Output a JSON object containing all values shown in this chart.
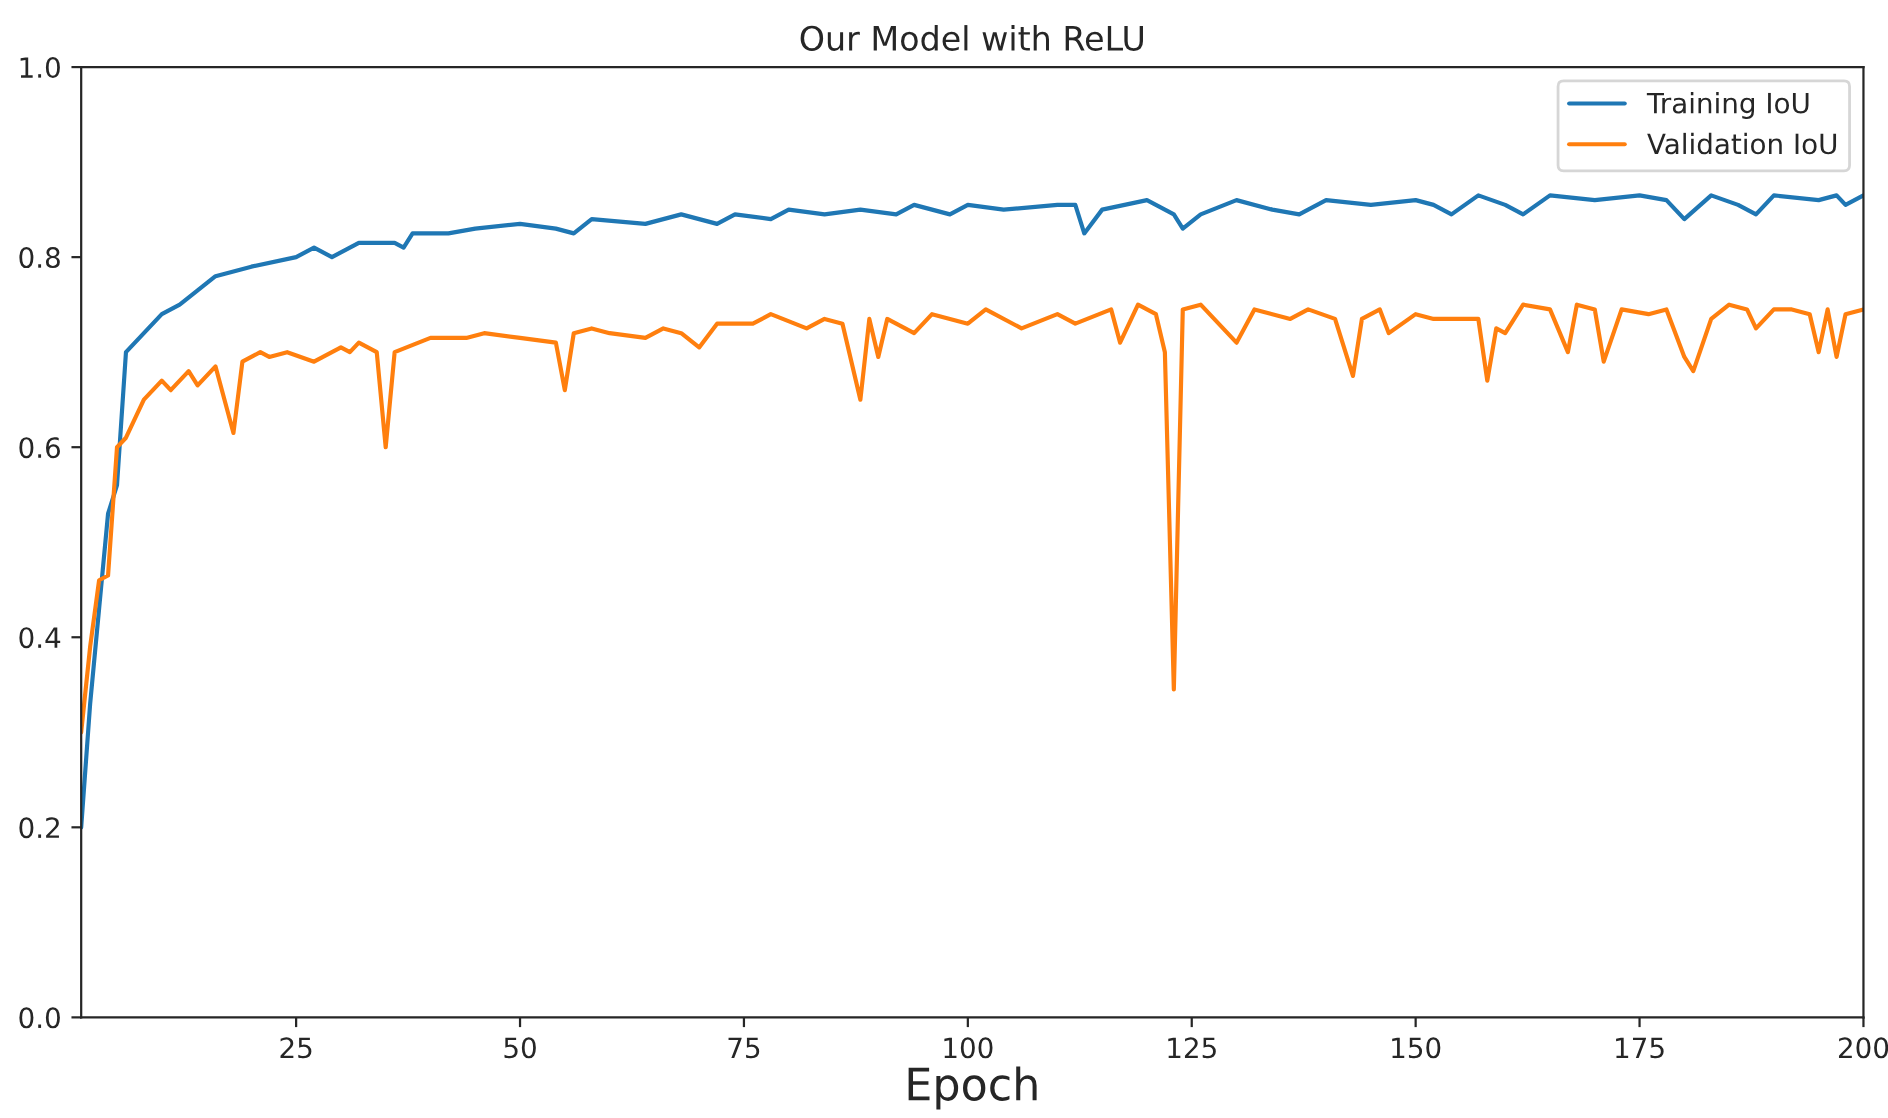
{
  "chart_data": {
    "type": "line",
    "title": "Our Model with ReLU",
    "xlabel": "Epoch",
    "xlim": [
      1,
      200
    ],
    "xticks": [
      25,
      50,
      75,
      100,
      125,
      150,
      175,
      200
    ],
    "ylim": [
      0,
      1
    ],
    "yticks": [
      {
        "value": 0,
        "label": "0.0"
      },
      {
        "value": 0.2,
        "label": "0.2"
      },
      {
        "value": 0.4,
        "label": "0.4"
      },
      {
        "value": 0.6,
        "label": "0.6"
      },
      {
        "value": 0.8,
        "label": "0.8"
      },
      {
        "value": 1,
        "label": "1.0"
      }
    ],
    "grid": false,
    "legend": "top right",
    "marker": "none",
    "line_style": "solid",
    "series": [
      {
        "name": "Training IoU",
        "color": "#1f77b4",
        "x": [
          1,
          2,
          3,
          4,
          5,
          6,
          8,
          10,
          12,
          14,
          16,
          20,
          25,
          27,
          29,
          32,
          36,
          37,
          38,
          42,
          45,
          50,
          54,
          56,
          58,
          64,
          68,
          72,
          74,
          78,
          80,
          84,
          88,
          92,
          94,
          98,
          100,
          104,
          110,
          112,
          113,
          115,
          120,
          123,
          124,
          126,
          130,
          134,
          137,
          140,
          145,
          150,
          152,
          154,
          157,
          160,
          162,
          165,
          170,
          175,
          178,
          180,
          183,
          186,
          188,
          190,
          195,
          197,
          198,
          200
        ],
        "values": [
          0.2,
          0.33,
          0.43,
          0.53,
          0.56,
          0.7,
          0.72,
          0.74,
          0.75,
          0.765,
          0.78,
          0.79,
          0.8,
          0.81,
          0.8,
          0.815,
          0.815,
          0.81,
          0.825,
          0.825,
          0.83,
          0.835,
          0.83,
          0.825,
          0.84,
          0.835,
          0.845,
          0.835,
          0.845,
          0.84,
          0.85,
          0.845,
          0.85,
          0.845,
          0.855,
          0.845,
          0.855,
          0.85,
          0.855,
          0.855,
          0.825,
          0.85,
          0.86,
          0.845,
          0.83,
          0.845,
          0.86,
          0.85,
          0.845,
          0.86,
          0.855,
          0.86,
          0.855,
          0.845,
          0.865,
          0.855,
          0.845,
          0.865,
          0.86,
          0.865,
          0.86,
          0.84,
          0.865,
          0.855,
          0.845,
          0.865,
          0.86,
          0.865,
          0.855,
          0.865
        ]
      },
      {
        "name": "Validation IoU",
        "color": "#ff7f0e",
        "x": [
          1,
          2,
          3,
          4,
          5,
          6,
          8,
          10,
          11,
          13,
          14,
          16,
          18,
          19,
          21,
          22,
          24,
          27,
          30,
          31,
          32,
          34,
          35,
          36,
          40,
          44,
          46,
          50,
          54,
          55,
          56,
          58,
          60,
          64,
          66,
          68,
          70,
          72,
          76,
          78,
          82,
          84,
          86,
          88,
          89,
          90,
          91,
          94,
          96,
          100,
          102,
          106,
          110,
          112,
          116,
          117,
          119,
          121,
          122,
          123,
          124,
          126,
          130,
          132,
          136,
          138,
          141,
          143,
          144,
          146,
          147,
          150,
          152,
          155,
          157,
          158,
          159,
          160,
          162,
          165,
          167,
          168,
          170,
          171,
          173,
          176,
          178,
          180,
          181,
          183,
          185,
          187,
          188,
          190,
          192,
          194,
          195,
          196,
          197,
          198,
          200
        ],
        "values": [
          0.3,
          0.39,
          0.46,
          0.465,
          0.6,
          0.61,
          0.65,
          0.67,
          0.66,
          0.68,
          0.665,
          0.685,
          0.615,
          0.69,
          0.7,
          0.695,
          0.7,
          0.69,
          0.705,
          0.7,
          0.71,
          0.7,
          0.6,
          0.7,
          0.715,
          0.715,
          0.72,
          0.715,
          0.71,
          0.66,
          0.72,
          0.725,
          0.72,
          0.715,
          0.725,
          0.72,
          0.705,
          0.73,
          0.73,
          0.74,
          0.725,
          0.735,
          0.73,
          0.65,
          0.735,
          0.695,
          0.735,
          0.72,
          0.74,
          0.73,
          0.745,
          0.725,
          0.74,
          0.73,
          0.745,
          0.71,
          0.75,
          0.74,
          0.7,
          0.345,
          0.745,
          0.75,
          0.71,
          0.745,
          0.735,
          0.745,
          0.735,
          0.675,
          0.735,
          0.745,
          0.72,
          0.74,
          0.735,
          0.735,
          0.735,
          0.67,
          0.725,
          0.72,
          0.75,
          0.745,
          0.7,
          0.75,
          0.745,
          0.69,
          0.745,
          0.74,
          0.745,
          0.695,
          0.68,
          0.735,
          0.75,
          0.745,
          0.725,
          0.745,
          0.745,
          0.74,
          0.7,
          0.745,
          0.695,
          0.74,
          0.745
        ]
      }
    ]
  }
}
